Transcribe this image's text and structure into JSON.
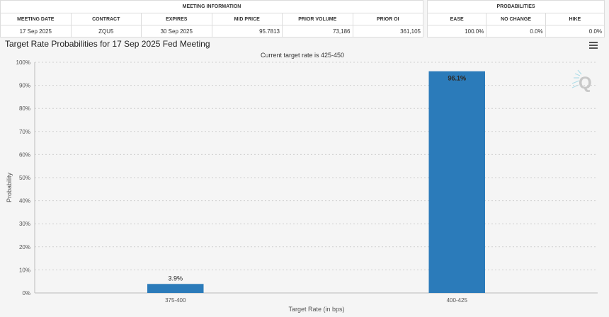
{
  "meeting_info": {
    "group_label": "MEETING INFORMATION",
    "headers": [
      "MEETING DATE",
      "CONTRACT",
      "EXPIRES",
      "MID PRICE",
      "PRIOR VOLUME",
      "PRIOR OI"
    ],
    "row": [
      "17 Sep 2025",
      "ZQU5",
      "30 Sep 2025",
      "95.7813",
      "73,186",
      "361,105"
    ]
  },
  "probabilities": {
    "group_label": "PROBABILITIES",
    "headers": [
      "EASE",
      "NO CHANGE",
      "HIKE"
    ],
    "row": [
      "100.0%",
      "0.0%",
      "0.0%"
    ]
  },
  "chart_data": {
    "type": "bar",
    "title": "Target Rate Probabilities for 17 Sep 2025 Fed Meeting",
    "subtitle": "Current target rate is 425-450",
    "xlabel": "Target Rate (in bps)",
    "ylabel": "Probability",
    "categories": [
      "375-400",
      "400-425"
    ],
    "values": [
      3.9,
      96.1
    ],
    "data_labels": [
      "3.9%",
      "96.1%"
    ],
    "ylim": [
      0,
      100
    ],
    "yticks": [
      "0%",
      "10%",
      "20%",
      "30%",
      "40%",
      "50%",
      "60%",
      "70%",
      "80%",
      "90%",
      "100%"
    ],
    "grid": true,
    "bar_color": "#2b7bba"
  },
  "icons": {
    "menu": "hamburger-menu-icon",
    "watermark": "quikstrike-logo"
  }
}
